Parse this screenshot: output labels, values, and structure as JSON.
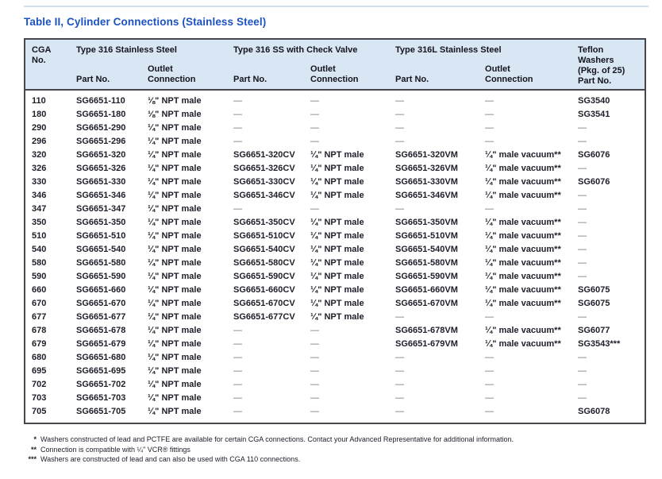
{
  "title": "Table II, Cylinder Connections (Stainless Steel)",
  "colors": {
    "title_blue": "#1d53c0",
    "header_background": "#d9e6f3",
    "table_border": "#46464e",
    "dash_gray": "#6e6e78"
  },
  "table": {
    "header": {
      "cga": "CGA\nNo.",
      "group_316": "Type 316 Stainless Steel",
      "group_316cv": "Type 316 SS with Check Valve",
      "group_316l": "Type 316L Stainless Steel",
      "teflon": "Teflon\nWashers\n(Pkg. of 25)\nPart No.",
      "part_no": "Part No.",
      "outlet": "Outlet\nConnection"
    },
    "rows": [
      {
        "cga": "110",
        "part316": "SG6651-110",
        "outlet316": "⅛\" NPT male",
        "partCV": "—",
        "outletCV": "—",
        "part316L": "—",
        "outlet316L": "—",
        "teflon": "SG3540"
      },
      {
        "cga": "180",
        "part316": "SG6651-180",
        "outlet316": "⅛\" NPT male",
        "partCV": "—",
        "outletCV": "—",
        "part316L": "—",
        "outlet316L": "—",
        "teflon": "SG3541"
      },
      {
        "cga": "290",
        "part316": "SG6651-290",
        "outlet316": "¼\" NPT male",
        "partCV": "—",
        "outletCV": "—",
        "part316L": "—",
        "outlet316L": "—",
        "teflon": "—"
      },
      {
        "cga": "296",
        "part316": "SG6651-296",
        "outlet316": "¼\" NPT male",
        "partCV": "—",
        "outletCV": "—",
        "part316L": "—",
        "outlet316L": "—",
        "teflon": "—"
      },
      {
        "cga": "320",
        "part316": "SG6651-320",
        "outlet316": "¼\" NPT male",
        "partCV": "SG6651-320CV",
        "outletCV": "¼\" NPT male",
        "part316L": "SG6651-320VM",
        "outlet316L": "¼\" male vacuum**",
        "teflon": "SG6076"
      },
      {
        "cga": "326",
        "part316": "SG6651-326",
        "outlet316": "¼\" NPT male",
        "partCV": "SG6651-326CV",
        "outletCV": "¼\" NPT male",
        "part316L": "SG6651-326VM",
        "outlet316L": "¼\" male vacuum**",
        "teflon": "—"
      },
      {
        "cga": "330",
        "part316": "SG6651-330",
        "outlet316": "¼\" NPT male",
        "partCV": "SG6651-330CV",
        "outletCV": "¼\" NPT male",
        "part316L": "SG6651-330VM",
        "outlet316L": "¼\" male vacuum**",
        "teflon": "SG6076"
      },
      {
        "cga": "346",
        "part316": "SG6651-346",
        "outlet316": "¼\" NPT male",
        "partCV": "SG6651-346CV",
        "outletCV": "¼\" NPT male",
        "part316L": "SG6651-346VM",
        "outlet316L": "¼\" male vacuum**",
        "teflon": "—"
      },
      {
        "cga": "347",
        "part316": "SG6651-347",
        "outlet316": "¼\" NPT male",
        "partCV": "—",
        "outletCV": "—",
        "part316L": "—",
        "outlet316L": "—",
        "teflon": "—"
      },
      {
        "cga": "350",
        "part316": "SG6651-350",
        "outlet316": "¼\" NPT male",
        "partCV": "SG6651-350CV",
        "outletCV": "¼\" NPT male",
        "part316L": "SG6651-350VM",
        "outlet316L": "¼\" male vacuum**",
        "teflon": "—"
      },
      {
        "cga": "510",
        "part316": "SG6651-510",
        "outlet316": "¼\" NPT male",
        "partCV": "SG6651-510CV",
        "outletCV": "¼\" NPT male",
        "part316L": "SG6651-510VM",
        "outlet316L": "¼\" male vacuum**",
        "teflon": "—"
      },
      {
        "cga": "540",
        "part316": "SG6651-540",
        "outlet316": "¼\" NPT male",
        "partCV": "SG6651-540CV",
        "outletCV": "¼\" NPT male",
        "part316L": "SG6651-540VM",
        "outlet316L": "¼\" male vacuum**",
        "teflon": "—"
      },
      {
        "cga": "580",
        "part316": "SG6651-580",
        "outlet316": "¼\" NPT male",
        "partCV": "SG6651-580CV",
        "outletCV": "¼\" NPT male",
        "part316L": "SG6651-580VM",
        "outlet316L": "¼\" male vacuum**",
        "teflon": "—"
      },
      {
        "cga": "590",
        "part316": "SG6651-590",
        "outlet316": "¼\" NPT male",
        "partCV": "SG6651-590CV",
        "outletCV": "¼\" NPT male",
        "part316L": "SG6651-590VM",
        "outlet316L": "¼\" male vacuum**",
        "teflon": "—"
      },
      {
        "cga": "660",
        "part316": "SG6651-660",
        "outlet316": "¼\" NPT male",
        "partCV": "SG6651-660CV",
        "outletCV": "¼\" NPT male",
        "part316L": "SG6651-660VM",
        "outlet316L": "¼\" male vacuum**",
        "teflon": "SG6075"
      },
      {
        "cga": "670",
        "part316": "SG6651-670",
        "outlet316": "¼\" NPT male",
        "partCV": "SG6651-670CV",
        "outletCV": "¼\" NPT male",
        "part316L": "SG6651-670VM",
        "outlet316L": "¼\" male vacuum**",
        "teflon": "SG6075"
      },
      {
        "cga": "677",
        "part316": "SG6651-677",
        "outlet316": "¼\" NPT male",
        "partCV": "SG6651-677CV",
        "outletCV": "¼\" NPT male",
        "part316L": "—",
        "outlet316L": "—",
        "teflon": "—"
      },
      {
        "cga": "678",
        "part316": "SG6651-678",
        "outlet316": "¼\" NPT male",
        "partCV": "—",
        "outletCV": "—",
        "part316L": "SG6651-678VM",
        "outlet316L": "¼\" male vacuum**",
        "teflon": "SG6077"
      },
      {
        "cga": "679",
        "part316": "SG6651-679",
        "outlet316": "¼\" NPT male",
        "partCV": "—",
        "outletCV": "—",
        "part316L": "SG6651-679VM",
        "outlet316L": "¼\" male vacuum**",
        "teflon": "SG3543***"
      },
      {
        "cga": "680",
        "part316": "SG6651-680",
        "outlet316": "¼\" NPT male",
        "partCV": "—",
        "outletCV": "—",
        "part316L": "—",
        "outlet316L": "—",
        "teflon": "—"
      },
      {
        "cga": "695",
        "part316": "SG6651-695",
        "outlet316": "¼\" NPT male",
        "partCV": "—",
        "outletCV": "—",
        "part316L": "—",
        "outlet316L": "—",
        "teflon": "—"
      },
      {
        "cga": "702",
        "part316": "SG6651-702",
        "outlet316": "¼\" NPT male",
        "partCV": "—",
        "outletCV": "—",
        "part316L": "—",
        "outlet316L": "—",
        "teflon": "—"
      },
      {
        "cga": "703",
        "part316": "SG6651-703",
        "outlet316": "¼\" NPT male",
        "partCV": "—",
        "outletCV": "—",
        "part316L": "—",
        "outlet316L": "—",
        "teflon": "—"
      },
      {
        "cga": "705",
        "part316": "SG6651-705",
        "outlet316": "¼\" NPT male",
        "partCV": "—",
        "outletCV": "—",
        "part316L": "—",
        "outlet316L": "—",
        "teflon": "SG6078"
      }
    ]
  },
  "footnotes": [
    {
      "marker": "*",
      "text": "Washers constructed of lead and PCTFE are available for certain CGA connections. Contact your Advanced Representative for additional information."
    },
    {
      "marker": "**",
      "text": "Connection is compatible with ¼\" VCR® fittings"
    },
    {
      "marker": "***",
      "text": "Washers are constructed of lead and can also be used with CGA 110 connections."
    }
  ]
}
